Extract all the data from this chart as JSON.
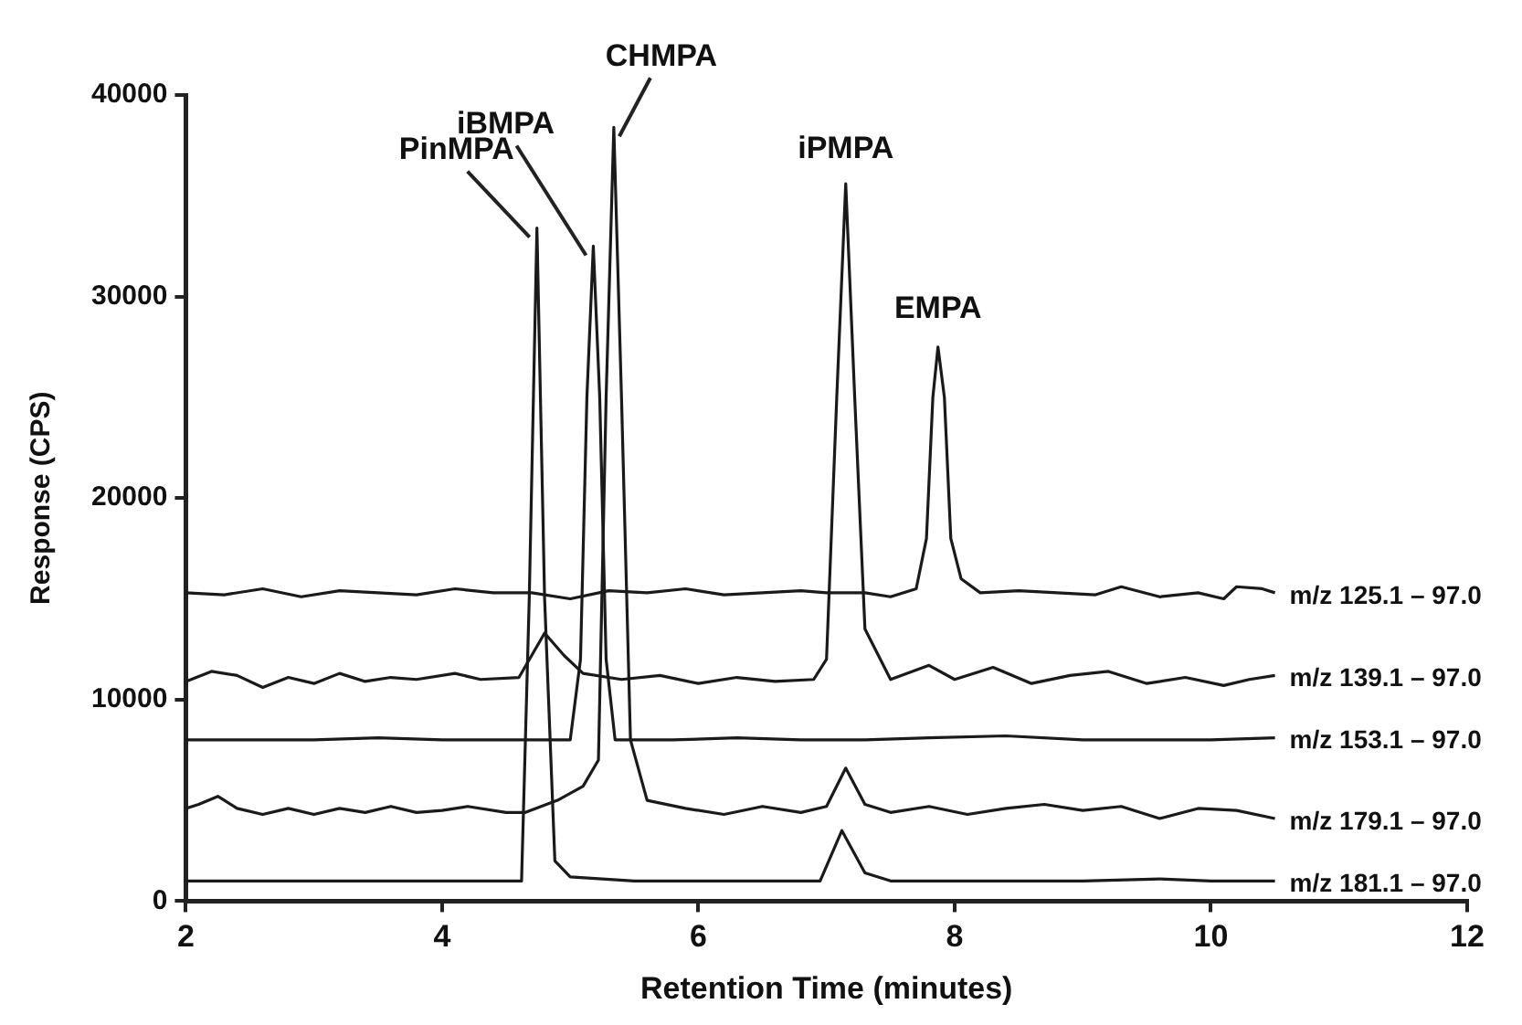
{
  "chart_data": {
    "type": "line",
    "xlabel": "Retention Time (minutes)",
    "ylabel": "Response (CPS)",
    "xlim": [
      2,
      12
    ],
    "xticks": [
      2,
      4,
      6,
      8,
      10,
      12
    ],
    "ylim": [
      0,
      40000
    ],
    "yticks": [
      0,
      10000,
      20000,
      30000,
      40000
    ],
    "grid": false,
    "legend": false,
    "marker": "none",
    "line_style": "solid",
    "series": [
      {
        "name": "m/z 125.1 – 97.0",
        "color": "#1a1a1a",
        "x": [
          2.0,
          2.3,
          2.6,
          2.9,
          3.2,
          3.5,
          3.8,
          4.1,
          4.4,
          4.7,
          5.0,
          5.3,
          5.6,
          5.9,
          6.2,
          6.5,
          6.8,
          7.0,
          7.3,
          7.5,
          7.7,
          7.78,
          7.83,
          7.87,
          7.92,
          7.97,
          8.05,
          8.2,
          8.5,
          8.8,
          9.1,
          9.3,
          9.6,
          9.9,
          10.1,
          10.2,
          10.4,
          10.5
        ],
        "values": [
          15300,
          15200,
          15500,
          15100,
          15400,
          15300,
          15200,
          15500,
          15300,
          15300,
          15000,
          15400,
          15300,
          15500,
          15200,
          15300,
          15400,
          15300,
          15300,
          15100,
          15500,
          18000,
          25000,
          27500,
          25000,
          18000,
          16000,
          15300,
          15400,
          15300,
          15200,
          15600,
          15100,
          15300,
          15000,
          15600,
          15500,
          15300
        ]
      },
      {
        "name": "m/z 139.1 – 97.0",
        "color": "#1a1a1a",
        "x": [
          2.0,
          2.2,
          2.4,
          2.6,
          2.8,
          3.0,
          3.2,
          3.4,
          3.6,
          3.8,
          4.1,
          4.3,
          4.6,
          4.8,
          4.95,
          5.1,
          5.4,
          5.7,
          6.0,
          6.3,
          6.6,
          6.9,
          7.0,
          7.08,
          7.15,
          7.22,
          7.3,
          7.5,
          7.8,
          8.0,
          8.3,
          8.6,
          8.9,
          9.2,
          9.5,
          9.8,
          10.1,
          10.3,
          10.5
        ],
        "values": [
          10900,
          11400,
          11200,
          10600,
          11100,
          10800,
          11300,
          10900,
          11100,
          11000,
          11300,
          11000,
          11100,
          13300,
          12200,
          11300,
          11000,
          11200,
          10800,
          11100,
          10900,
          11000,
          12000,
          25000,
          35600,
          25000,
          13500,
          11000,
          11700,
          11000,
          11600,
          10800,
          11200,
          11400,
          10800,
          11100,
          10700,
          11000,
          11200
        ]
      },
      {
        "name": "m/z 153.1 – 97.0",
        "color": "#1a1a1a",
        "x": [
          2.0,
          2.5,
          3.0,
          3.5,
          4.0,
          4.5,
          5.0,
          5.08,
          5.13,
          5.18,
          5.23,
          5.28,
          5.35,
          5.8,
          6.3,
          6.8,
          7.3,
          7.8,
          8.4,
          9.0,
          9.5,
          10.0,
          10.5
        ],
        "values": [
          8000,
          8000,
          8000,
          8100,
          8000,
          8000,
          8000,
          12000,
          25000,
          32500,
          25000,
          12000,
          8000,
          8000,
          8100,
          8000,
          8000,
          8100,
          8200,
          8000,
          8000,
          8000,
          8100
        ]
      },
      {
        "name": "m/z 179.1 – 97.0",
        "color": "#1a1a1a",
        "x": [
          2.0,
          2.1,
          2.25,
          2.4,
          2.6,
          2.8,
          3.0,
          3.2,
          3.4,
          3.6,
          3.8,
          4.0,
          4.2,
          4.5,
          4.65,
          4.9,
          5.1,
          5.22,
          5.28,
          5.34,
          5.4,
          5.47,
          5.6,
          5.9,
          6.2,
          6.5,
          6.8,
          7.0,
          7.15,
          7.3,
          7.5,
          7.8,
          8.1,
          8.4,
          8.7,
          9.0,
          9.3,
          9.6,
          9.9,
          10.2,
          10.5
        ],
        "values": [
          4600,
          4800,
          5200,
          4600,
          4300,
          4600,
          4300,
          4600,
          4400,
          4700,
          4400,
          4500,
          4700,
          4400,
          4400,
          5000,
          5700,
          7000,
          25000,
          38400,
          25000,
          8000,
          5000,
          4600,
          4300,
          4700,
          4400,
          4700,
          6600,
          4800,
          4400,
          4700,
          4300,
          4600,
          4800,
          4500,
          4700,
          4100,
          4600,
          4500,
          4100
        ]
      },
      {
        "name": "m/z 181.1 – 97.0",
        "color": "#1a1a1a",
        "x": [
          2.0,
          2.5,
          3.0,
          3.5,
          4.0,
          4.5,
          4.62,
          4.68,
          4.74,
          4.8,
          4.88,
          5.0,
          5.5,
          6.0,
          6.5,
          6.95,
          7.12,
          7.3,
          7.5,
          8.0,
          8.5,
          9.0,
          9.6,
          10.0,
          10.5
        ],
        "values": [
          1000,
          1000,
          1000,
          1000,
          1000,
          1000,
          1000,
          15000,
          33400,
          15000,
          2000,
          1200,
          1000,
          1000,
          1000,
          1000,
          3500,
          1400,
          1000,
          1000,
          1000,
          1000,
          1100,
          1000,
          1000
        ]
      }
    ],
    "annotations": [
      {
        "text": "PinMPA",
        "x": 4.74,
        "y": 33400
      },
      {
        "text": "iBMPA",
        "x": 5.18,
        "y": 32500
      },
      {
        "text": "CHMPA",
        "x": 5.34,
        "y": 38400
      },
      {
        "text": "iPMPA",
        "x": 7.15,
        "y": 35600
      },
      {
        "text": "EMPA",
        "x": 7.87,
        "y": 27500
      }
    ]
  }
}
